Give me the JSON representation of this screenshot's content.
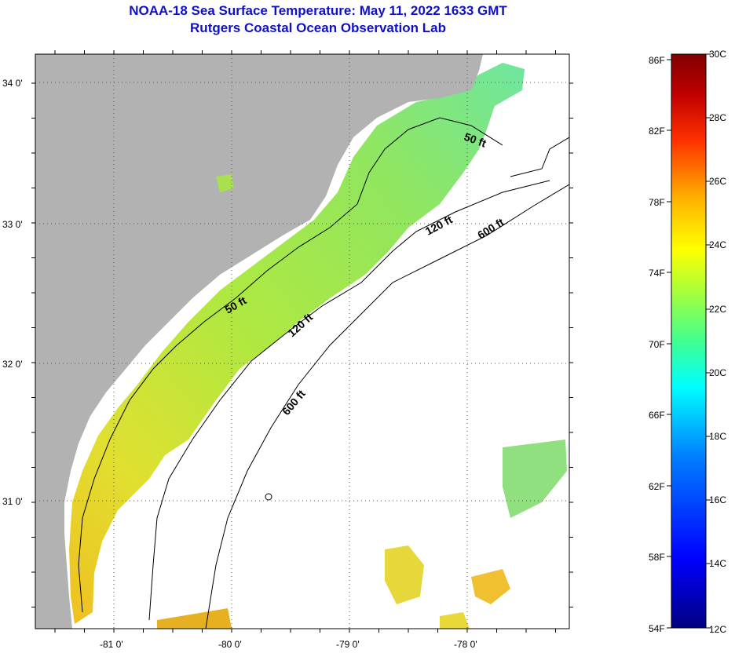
{
  "title": {
    "line1": "NOAA-18 Sea Surface Temperature:  May 11, 2022 1633 GMT",
    "line2": "Rutgers Coastal Ocean Observation Lab"
  },
  "map": {
    "latitude_labels": [
      "34 0'",
      "33 0'",
      "32 0'",
      "31 0'"
    ],
    "longitude_labels": [
      "-81 0'",
      "-80 0'",
      "-79 0'",
      "-78 0'"
    ],
    "contour_labels": [
      "50 ft",
      "120 ft",
      "600 ft",
      "50 ft",
      "120 ft",
      "600 ft"
    ],
    "colors": {
      "land": "#b2b2b2",
      "ocean_nodata": "#ffffff",
      "sst_main": "#a8e64a",
      "sst_cool": "#6ee69a",
      "sst_warm": "#e6e02e"
    }
  },
  "colorbar": {
    "fahrenheit_labels": [
      "86F",
      "82F",
      "78F",
      "74F",
      "70F",
      "66F",
      "62F",
      "58F",
      "54F"
    ],
    "celsius_labels": [
      "30C",
      "28C",
      "26C",
      "24C",
      "22C",
      "20C",
      "18C",
      "16C",
      "14C",
      "12C"
    ]
  }
}
